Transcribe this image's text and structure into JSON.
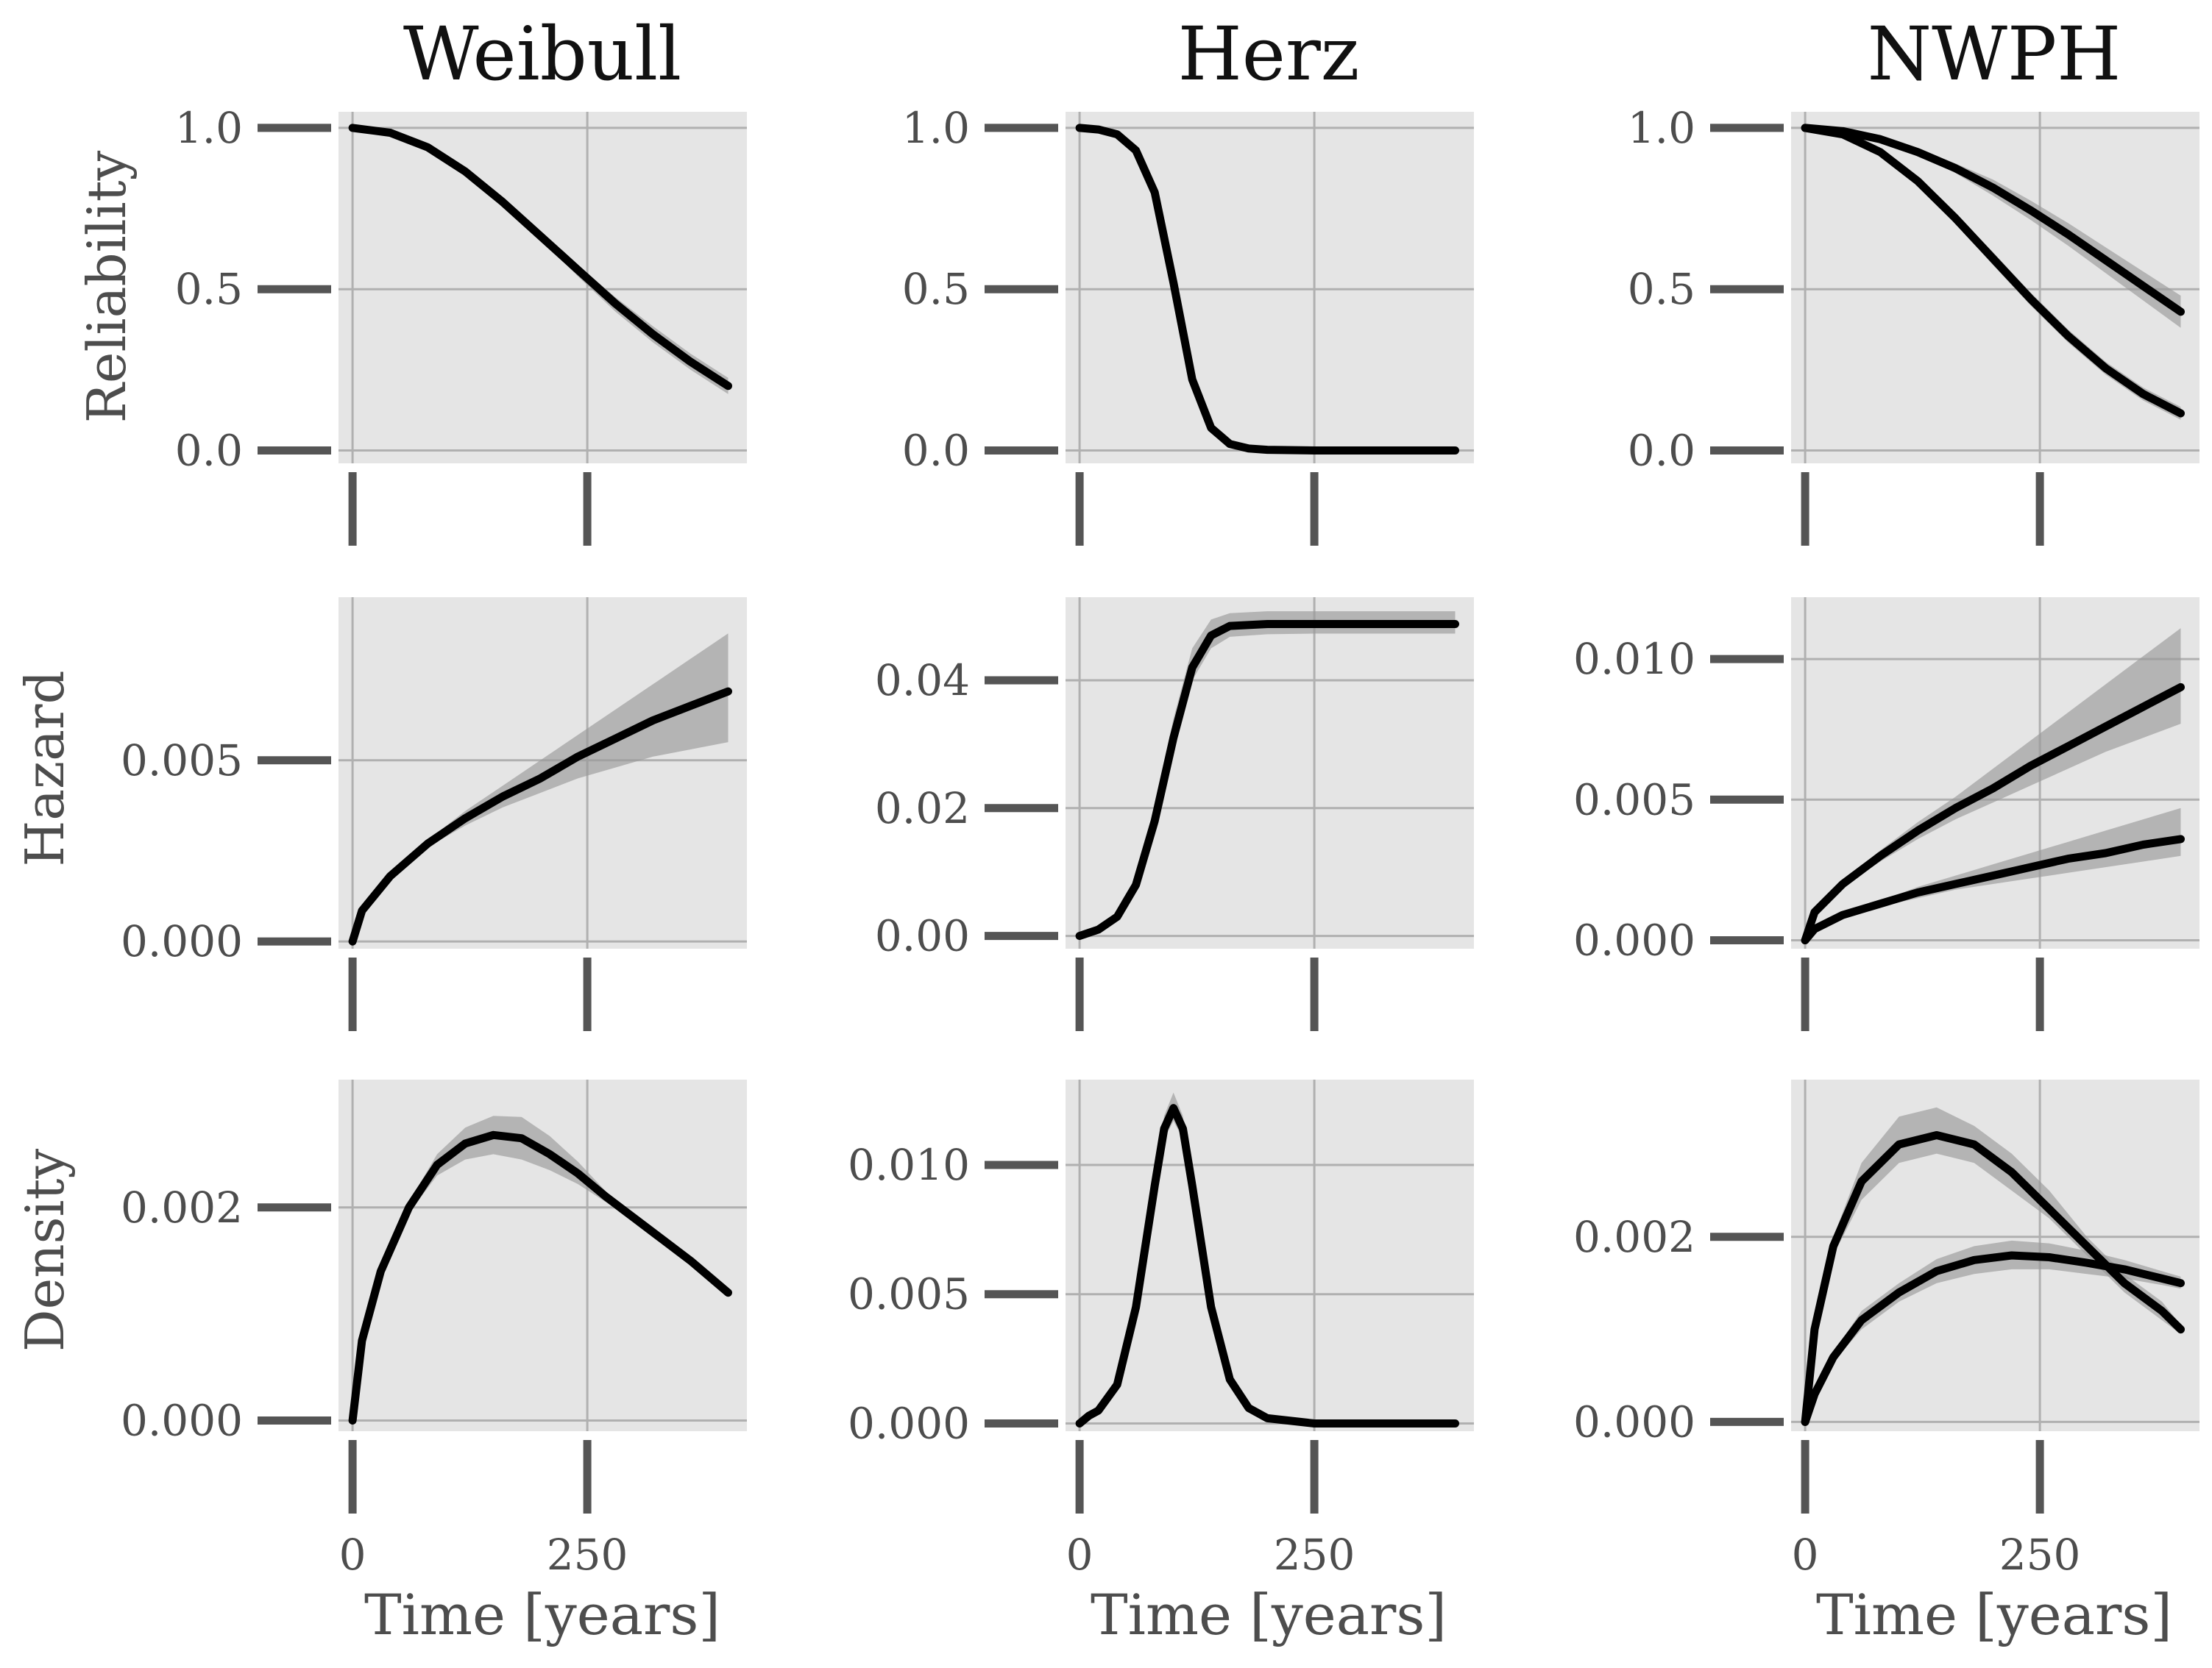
{
  "figure": {
    "column_titles": [
      "Weibull",
      "Herz",
      "NWPH"
    ],
    "row_labels": [
      "Reliability",
      "Hazard",
      "Density"
    ],
    "x_label": "Time [years]"
  },
  "colors": {
    "panel_background": "#e5e5e5",
    "grid": "#b0b0b0",
    "curve": "#000000",
    "band": "#999999",
    "tick": "#555555"
  },
  "chart_data": [
    {
      "type": "line",
      "title": "Weibull",
      "ylabel": "Reliability",
      "xlabel": "",
      "xlim": [
        -15,
        420
      ],
      "ylim": [
        -0.04,
        1.05
      ],
      "grid": true,
      "xticks": [
        0,
        250
      ],
      "xtick_labels": [
        "",
        ""
      ],
      "yticks": [
        0.0,
        0.5,
        1.0
      ],
      "ytick_labels": [
        "0.0",
        "0.5",
        "1.0"
      ],
      "x": [
        0,
        40,
        80,
        120,
        160,
        200,
        240,
        280,
        320,
        360,
        400
      ],
      "series": [
        {
          "values": [
            1.0,
            0.985,
            0.94,
            0.865,
            0.77,
            0.665,
            0.56,
            0.455,
            0.36,
            0.275,
            0.2
          ],
          "lower": [
            1.0,
            0.985,
            0.94,
            0.865,
            0.765,
            0.655,
            0.54,
            0.43,
            0.335,
            0.25,
            0.175
          ],
          "upper": [
            1.0,
            0.985,
            0.94,
            0.865,
            0.775,
            0.675,
            0.575,
            0.475,
            0.385,
            0.3,
            0.225
          ]
        }
      ]
    },
    {
      "type": "line",
      "title": "Herz",
      "ylabel": "",
      "xlabel": "",
      "xlim": [
        -15,
        420
      ],
      "ylim": [
        -0.04,
        1.05
      ],
      "grid": true,
      "xticks": [
        0,
        250
      ],
      "xtick_labels": [
        "",
        ""
      ],
      "yticks": [
        0.0,
        0.5,
        1.0
      ],
      "ytick_labels": [
        "0.0",
        "0.5",
        "1.0"
      ],
      "x": [
        0,
        20,
        40,
        60,
        80,
        100,
        120,
        140,
        160,
        180,
        200,
        250,
        300,
        400
      ],
      "series": [
        {
          "values": [
            1.0,
            0.995,
            0.98,
            0.93,
            0.8,
            0.52,
            0.22,
            0.07,
            0.02,
            0.006,
            0.002,
            0.0,
            0.0,
            0.0
          ],
          "lower": [
            1.0,
            0.995,
            0.98,
            0.925,
            0.785,
            0.5,
            0.2,
            0.06,
            0.015,
            0.004,
            0.001,
            0.0,
            0.0,
            0.0
          ],
          "upper": [
            1.0,
            0.995,
            0.98,
            0.935,
            0.815,
            0.54,
            0.24,
            0.08,
            0.025,
            0.008,
            0.003,
            0.0,
            0.0,
            0.0
          ]
        }
      ]
    },
    {
      "type": "line",
      "title": "NWPH",
      "ylabel": "",
      "xlabel": "",
      "xlim": [
        -15,
        420
      ],
      "ylim": [
        -0.04,
        1.05
      ],
      "grid": true,
      "xticks": [
        0,
        250
      ],
      "xtick_labels": [
        "",
        ""
      ],
      "yticks": [
        0.0,
        0.5,
        1.0
      ],
      "ytick_labels": [
        "0.0",
        "0.5",
        "1.0"
      ],
      "x": [
        0,
        40,
        80,
        120,
        160,
        200,
        240,
        280,
        320,
        360,
        400
      ],
      "series": [
        {
          "values": [
            1.0,
            0.99,
            0.965,
            0.925,
            0.875,
            0.815,
            0.745,
            0.67,
            0.59,
            0.51,
            0.43
          ],
          "lower": [
            1.0,
            0.99,
            0.96,
            0.915,
            0.86,
            0.79,
            0.715,
            0.635,
            0.55,
            0.465,
            0.38
          ],
          "upper": [
            1.0,
            0.99,
            0.97,
            0.935,
            0.89,
            0.84,
            0.775,
            0.705,
            0.63,
            0.555,
            0.48
          ]
        },
        {
          "values": [
            1.0,
            0.98,
            0.925,
            0.835,
            0.72,
            0.595,
            0.47,
            0.355,
            0.255,
            0.175,
            0.115
          ],
          "lower": [
            1.0,
            0.98,
            0.92,
            0.825,
            0.705,
            0.575,
            0.45,
            0.335,
            0.235,
            0.155,
            0.095
          ],
          "upper": [
            1.0,
            0.98,
            0.93,
            0.845,
            0.735,
            0.615,
            0.49,
            0.375,
            0.275,
            0.195,
            0.135
          ]
        }
      ]
    },
    {
      "type": "line",
      "title": "",
      "ylabel": "Hazard",
      "xlabel": "",
      "xlim": [
        -15,
        420
      ],
      "ylim": [
        -0.0002,
        0.0095
      ],
      "grid": true,
      "xticks": [
        0,
        250
      ],
      "xtick_labels": [
        "",
        ""
      ],
      "yticks": [
        0.0,
        0.005
      ],
      "ytick_labels": [
        "0.000",
        "0.005"
      ],
      "x": [
        0,
        10,
        40,
        80,
        120,
        160,
        200,
        240,
        280,
        320,
        360,
        400
      ],
      "series": [
        {
          "values": [
            0.0,
            0.00085,
            0.0018,
            0.0027,
            0.0034,
            0.004,
            0.0045,
            0.0051,
            0.0056,
            0.0061,
            0.0065,
            0.0069
          ],
          "lower": [
            0.0,
            0.00085,
            0.0018,
            0.0026,
            0.0032,
            0.0037,
            0.0041,
            0.0045,
            0.0048,
            0.0051,
            0.0053,
            0.0055
          ],
          "upper": [
            0.0,
            0.00085,
            0.0018,
            0.0028,
            0.0036,
            0.0043,
            0.005,
            0.0057,
            0.0064,
            0.0071,
            0.0078,
            0.0085
          ]
        }
      ]
    },
    {
      "type": "line",
      "title": "",
      "ylabel": "",
      "xlabel": "",
      "xlim": [
        -15,
        420
      ],
      "ylim": [
        -0.002,
        0.053
      ],
      "grid": true,
      "xticks": [
        0,
        250
      ],
      "xtick_labels": [
        "",
        ""
      ],
      "yticks": [
        0.0,
        0.02,
        0.04
      ],
      "ytick_labels": [
        "0.00",
        "0.02",
        "0.04"
      ],
      "x": [
        0,
        20,
        40,
        60,
        80,
        100,
        120,
        140,
        160,
        200,
        250,
        300,
        400
      ],
      "series": [
        {
          "values": [
            0.0,
            0.001,
            0.003,
            0.008,
            0.018,
            0.031,
            0.042,
            0.047,
            0.0485,
            0.0488,
            0.0488,
            0.0488,
            0.0488
          ],
          "lower": [
            0.0,
            0.001,
            0.003,
            0.007,
            0.016,
            0.029,
            0.04,
            0.045,
            0.0468,
            0.0472,
            0.0473,
            0.0473,
            0.0473
          ],
          "upper": [
            0.0,
            0.001,
            0.003,
            0.009,
            0.02,
            0.034,
            0.045,
            0.0495,
            0.0505,
            0.0508,
            0.0508,
            0.0508,
            0.0508
          ]
        }
      ]
    },
    {
      "type": "line",
      "title": "",
      "ylabel": "",
      "xlabel": "",
      "xlim": [
        -15,
        420
      ],
      "ylim": [
        -0.0003,
        0.0122
      ],
      "grid": true,
      "xticks": [
        0,
        250
      ],
      "xtick_labels": [
        "",
        ""
      ],
      "yticks": [
        0.0,
        0.005,
        0.01
      ],
      "ytick_labels": [
        "0.000",
        "0.005",
        "0.010"
      ],
      "x": [
        0,
        10,
        40,
        80,
        120,
        160,
        200,
        240,
        280,
        320,
        360,
        400
      ],
      "series": [
        {
          "values": [
            0.0,
            0.001,
            0.002,
            0.003,
            0.0039,
            0.0047,
            0.0054,
            0.0062,
            0.0069,
            0.0076,
            0.0083,
            0.009
          ],
          "lower": [
            0.0,
            0.001,
            0.0019,
            0.0028,
            0.0036,
            0.0043,
            0.0049,
            0.0055,
            0.0061,
            0.0067,
            0.0072,
            0.0077
          ],
          "upper": [
            0.0,
            0.001,
            0.0021,
            0.0032,
            0.0042,
            0.0051,
            0.0061,
            0.0071,
            0.0081,
            0.0091,
            0.0101,
            0.0111
          ]
        },
        {
          "values": [
            0.0,
            0.0004,
            0.0009,
            0.0013,
            0.0017,
            0.002,
            0.0023,
            0.0026,
            0.0029,
            0.0031,
            0.0034,
            0.0036
          ],
          "lower": [
            0.0,
            0.0004,
            0.0008,
            0.0012,
            0.0015,
            0.0018,
            0.002,
            0.0022,
            0.0024,
            0.0026,
            0.0028,
            0.003
          ],
          "upper": [
            0.0,
            0.0004,
            0.001,
            0.0014,
            0.0019,
            0.0023,
            0.0027,
            0.0031,
            0.0035,
            0.0039,
            0.0043,
            0.0047
          ]
        }
      ]
    },
    {
      "type": "line",
      "title": "",
      "ylabel": "Density",
      "xlabel": "Time [years]",
      "xlim": [
        -15,
        420
      ],
      "ylim": [
        -0.0001,
        0.0032
      ],
      "grid": true,
      "xticks": [
        0,
        250
      ],
      "xtick_labels": [
        "0",
        "250"
      ],
      "yticks": [
        0.0,
        0.002
      ],
      "ytick_labels": [
        "0.000",
        "0.002"
      ],
      "x": [
        0,
        10,
        30,
        60,
        90,
        120,
        150,
        180,
        210,
        240,
        270,
        300,
        330,
        360,
        400
      ],
      "series": [
        {
          "values": [
            0.0,
            0.00075,
            0.0014,
            0.002,
            0.0024,
            0.0026,
            0.00268,
            0.00265,
            0.0025,
            0.00232,
            0.0021,
            0.0019,
            0.0017,
            0.0015,
            0.0012
          ],
          "lower": [
            0.0,
            0.00075,
            0.0014,
            0.00195,
            0.0023,
            0.00245,
            0.0025,
            0.00245,
            0.00235,
            0.00222,
            0.00205,
            0.00187,
            0.00168,
            0.00148,
            0.0012
          ],
          "upper": [
            0.0,
            0.00075,
            0.0014,
            0.00205,
            0.0025,
            0.00275,
            0.00286,
            0.00285,
            0.00267,
            0.00243,
            0.00215,
            0.00193,
            0.00172,
            0.00152,
            0.00125
          ]
        }
      ]
    },
    {
      "type": "line",
      "title": "",
      "ylabel": "",
      "xlabel": "Time [years]",
      "xlim": [
        -15,
        420
      ],
      "ylim": [
        -0.0003,
        0.0133
      ],
      "grid": true,
      "xticks": [
        0,
        250
      ],
      "xtick_labels": [
        "0",
        "250"
      ],
      "yticks": [
        0.0,
        0.005,
        0.01
      ],
      "ytick_labels": [
        "0.000",
        "0.005",
        "0.010"
      ],
      "x": [
        0,
        10,
        20,
        40,
        60,
        80,
        90,
        100,
        110,
        120,
        140,
        160,
        180,
        200,
        250,
        300,
        400
      ],
      "series": [
        {
          "values": [
            0.0,
            0.0003,
            0.0005,
            0.0015,
            0.0045,
            0.0092,
            0.0114,
            0.0122,
            0.0114,
            0.0092,
            0.0045,
            0.0017,
            0.0006,
            0.0002,
            0.0,
            0.0,
            0.0
          ],
          "lower": [
            0.0,
            0.0003,
            0.0005,
            0.0014,
            0.0042,
            0.0088,
            0.011,
            0.0117,
            0.011,
            0.0088,
            0.0042,
            0.0015,
            0.0005,
            0.0001,
            0.0,
            0.0,
            0.0
          ],
          "upper": [
            0.0,
            0.0003,
            0.0005,
            0.0016,
            0.0048,
            0.0096,
            0.0119,
            0.0128,
            0.0119,
            0.0096,
            0.0048,
            0.0019,
            0.0007,
            0.0003,
            0.0,
            0.0,
            0.0
          ]
        }
      ]
    },
    {
      "type": "line",
      "title": "",
      "ylabel": "",
      "xlabel": "Time [years]",
      "xlim": [
        -15,
        420
      ],
      "ylim": [
        -0.0001,
        0.0037
      ],
      "grid": true,
      "xticks": [
        0,
        250
      ],
      "xtick_labels": [
        "0",
        "250"
      ],
      "yticks": [
        0.0,
        0.002
      ],
      "ytick_labels": [
        "0.000",
        "0.002"
      ],
      "x": [
        0,
        10,
        30,
        60,
        100,
        140,
        180,
        220,
        260,
        300,
        340,
        380,
        400
      ],
      "series": [
        {
          "values": [
            0.0,
            0.001,
            0.0019,
            0.0026,
            0.003,
            0.0031,
            0.003,
            0.0027,
            0.0023,
            0.0019,
            0.0015,
            0.0012,
            0.001
          ],
          "lower": [
            0.0,
            0.001,
            0.0018,
            0.0024,
            0.0028,
            0.0029,
            0.0028,
            0.0025,
            0.0022,
            0.0018,
            0.0014,
            0.0011,
            0.00095
          ],
          "upper": [
            0.0,
            0.001,
            0.002,
            0.0028,
            0.0033,
            0.0034,
            0.0032,
            0.0029,
            0.0025,
            0.002,
            0.0016,
            0.0013,
            0.00105
          ]
        },
        {
          "values": [
            0.0,
            0.0003,
            0.0007,
            0.0011,
            0.0014,
            0.00163,
            0.00175,
            0.0018,
            0.00178,
            0.00172,
            0.00165,
            0.00155,
            0.0015
          ],
          "lower": [
            0.0,
            0.0003,
            0.00065,
            0.001,
            0.0013,
            0.0015,
            0.0016,
            0.00165,
            0.00165,
            0.0016,
            0.00155,
            0.00148,
            0.00144
          ],
          "upper": [
            0.0,
            0.0003,
            0.00075,
            0.0012,
            0.0015,
            0.00176,
            0.0019,
            0.00196,
            0.00193,
            0.00185,
            0.00175,
            0.00163,
            0.00157
          ]
        }
      ]
    }
  ]
}
